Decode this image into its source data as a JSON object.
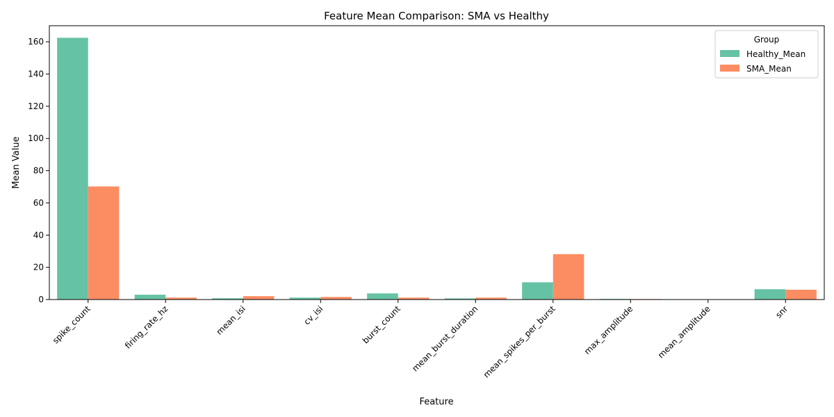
{
  "chart_data": {
    "type": "bar",
    "title": "Feature Mean Comparison: SMA vs Healthy",
    "xlabel": "Feature",
    "ylabel": "Mean Value",
    "ylim": [
      0,
      170
    ],
    "yticks": [
      0,
      20,
      40,
      60,
      80,
      100,
      120,
      140,
      160
    ],
    "categories": [
      "spike_count",
      "firing_rate_hz",
      "mean_isi",
      "cv_isi",
      "burst_count",
      "mean_burst_duration",
      "mean_spikes_per_burst",
      "max_amplitude",
      "mean_amplitude",
      "snr"
    ],
    "series": [
      {
        "name": "Healthy_Mean",
        "color": "#66c2a5",
        "values": [
          162.5,
          3.0,
          0.8,
          1.2,
          3.8,
          0.7,
          10.7,
          0.4,
          0.05,
          6.4
        ]
      },
      {
        "name": "SMA_Mean",
        "color": "#fc8d62",
        "values": [
          70.2,
          1.2,
          2.1,
          1.6,
          1.2,
          1.2,
          28.2,
          0.3,
          0.05,
          6.1
        ]
      }
    ],
    "legend": {
      "title": "Group",
      "placement": "top-right"
    },
    "grid": false
  }
}
